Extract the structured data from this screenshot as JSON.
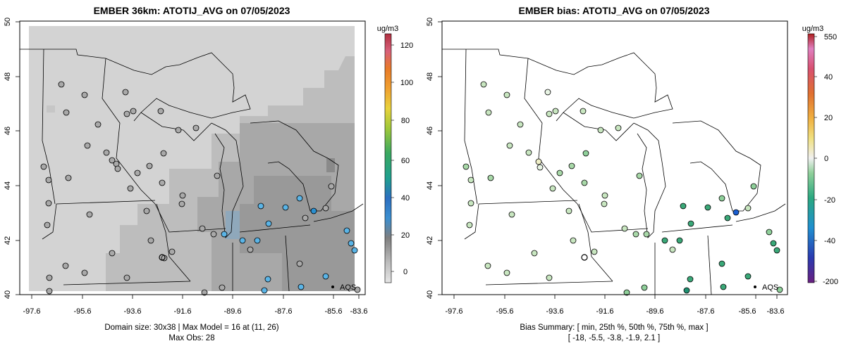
{
  "left": {
    "title": "EMBER 36km: ATOTIJ_AVG on 07/05/2023",
    "x_ticks": [
      "-97.6",
      "-95.6",
      "-93.6",
      "-91.6",
      "-89.6",
      "-87.6",
      "-85.6",
      "-83.6"
    ],
    "y_ticks": [
      "40",
      "42",
      "44",
      "46",
      "48",
      "50"
    ],
    "caption_line1": "Domain size: 30x38 | Max Model = 16 at (11, 26)",
    "caption_line2": "Max Obs: 28",
    "legend_unit": "ug/m3",
    "legend_ticks": [
      "0",
      "20",
      "40",
      "60",
      "80",
      "100",
      "120"
    ],
    "aqs_label": "AQS"
  },
  "right": {
    "title": "EMBER bias: ATOTIJ_AVG on 07/05/2023",
    "x_ticks": [
      "-97.6",
      "-95.6",
      "-93.6",
      "-91.6",
      "-89.6",
      "-87.6",
      "-85.6",
      "-83.6"
    ],
    "y_ticks": [
      "40",
      "42",
      "44",
      "46",
      "48",
      "50"
    ],
    "caption_line1": "Bias Summary: [ min, 25th %, 50th %, 75th %, max ]",
    "caption_line2": "[ -18,   -5.5,   -3.8,   -1.9,   2.1 ]",
    "legend_unit": "ug/m3",
    "legend_ticks": [
      "550",
      "40",
      "20",
      "0",
      "-20",
      "-40",
      "-200"
    ],
    "aqs_label": "AQS"
  },
  "colors": {
    "grid_light": "#d3d3d3",
    "grid_mid": "#bebebe",
    "grid_dark": "#a9a9a9",
    "obs_low_blue": "#5ab4e6",
    "bias_light_green": "#c8e6c0",
    "bias_green": "#3aa878"
  }
}
